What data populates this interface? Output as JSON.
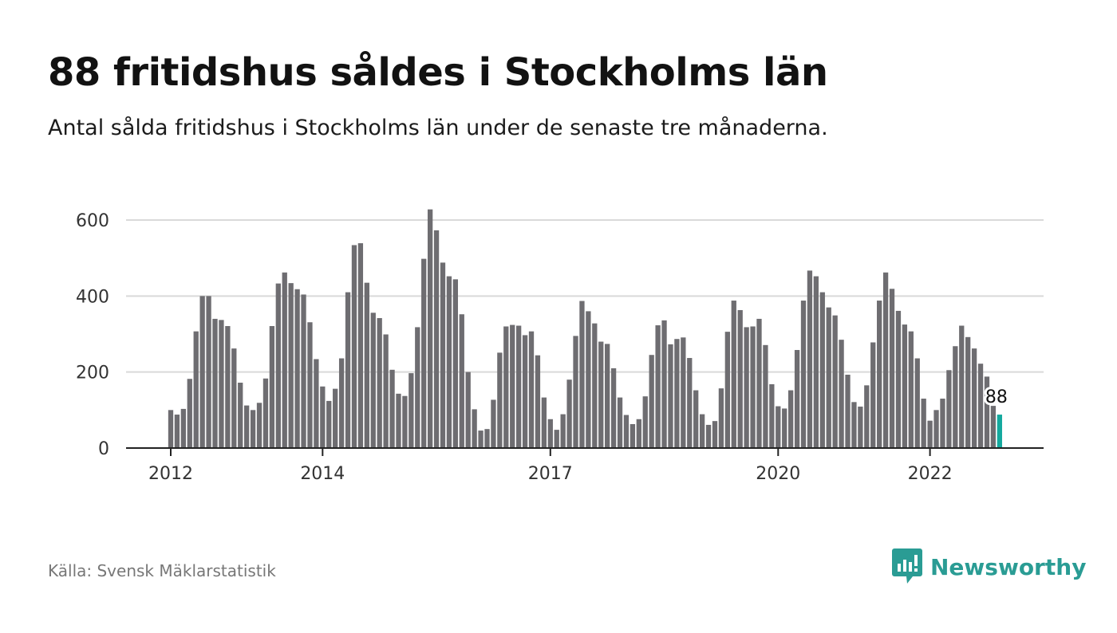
{
  "title": "88 fritidshus såldes i Stockholms län",
  "subtitle": "Antal sålda fritidshus i Stockholms län under de senaste tre månaderna.",
  "source": "Källa: Svensk Mäklarstatistik",
  "brand": {
    "name": "Newsworthy",
    "icon": "newsworthy-logo-icon"
  },
  "colors": {
    "bar": "#6e6d71",
    "highlight": "#14a99e",
    "grid": "#d9d9d9",
    "axis": "#222222",
    "brand": "#2a9c94"
  },
  "chart_data": {
    "type": "bar",
    "ylim": [
      0,
      650
    ],
    "yticks": [
      0,
      200,
      400,
      600
    ],
    "x_tick_labels": [
      {
        "label": "2012",
        "index": 0
      },
      {
        "label": "2014",
        "index": 24
      },
      {
        "label": "2017",
        "index": 60
      },
      {
        "label": "2020",
        "index": 96
      },
      {
        "label": "2022",
        "index": 120
      }
    ],
    "grid": true,
    "values": [
      100,
      88,
      103,
      182,
      307,
      400,
      400,
      340,
      337,
      321,
      262,
      172,
      112,
      100,
      119,
      183,
      321,
      433,
      462,
      434,
      418,
      404,
      331,
      234,
      162,
      124,
      156,
      236,
      410,
      534,
      539,
      435,
      356,
      342,
      299,
      206,
      143,
      137,
      197,
      318,
      498,
      628,
      573,
      488,
      452,
      444,
      352,
      200,
      102,
      46,
      50,
      127,
      251,
      320,
      324,
      322,
      297,
      307,
      244,
      133,
      76,
      48,
      89,
      180,
      295,
      387,
      360,
      328,
      280,
      274,
      210,
      133,
      87,
      63,
      76,
      136,
      245,
      323,
      336,
      273,
      287,
      291,
      237,
      152,
      89,
      61,
      71,
      157,
      306,
      388,
      363,
      318,
      320,
      340,
      271,
      168,
      110,
      104,
      152,
      258,
      388,
      467,
      452,
      410,
      370,
      349,
      285,
      193,
      121,
      109,
      165,
      278,
      388,
      462,
      419,
      361,
      325,
      307,
      236,
      130,
      72,
      100,
      130,
      205,
      268,
      322,
      292,
      262,
      222,
      188,
      111,
      88
    ],
    "highlight_index": 131,
    "annotation": {
      "text": "88",
      "index": 131
    }
  }
}
